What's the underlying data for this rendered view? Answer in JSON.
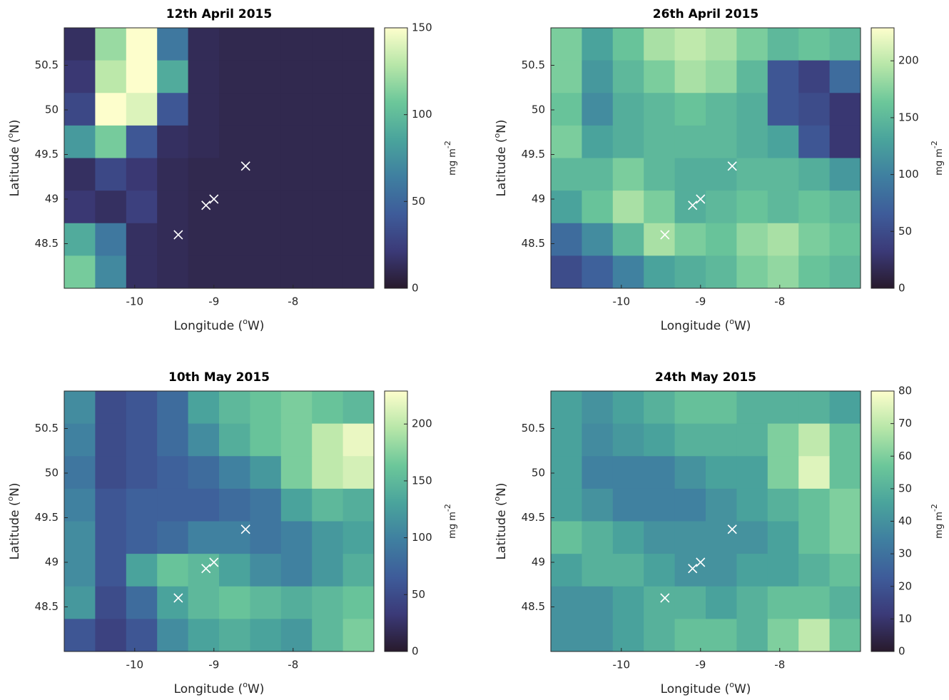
{
  "chart_data": [
    {
      "type": "heatmap",
      "title": "12th April 2015",
      "xlabel": [
        "Longitude (",
        "o",
        "W)"
      ],
      "ylabel": [
        "Latitude (",
        "o",
        "N)"
      ],
      "xlim": [
        -10.89,
        -6.98
      ],
      "ylim": [
        48.0,
        50.92
      ],
      "xticks": [
        -10,
        -9,
        -8
      ],
      "yticks": [
        48.5,
        49,
        49.5,
        50,
        50.5
      ],
      "z": [
        [
          15,
          120,
          150,
          60,
          12,
          10,
          10,
          10,
          10,
          10
        ],
        [
          20,
          130,
          150,
          90,
          12,
          10,
          10,
          10,
          10,
          10
        ],
        [
          30,
          150,
          140,
          40,
          12,
          10,
          10,
          10,
          10,
          10
        ],
        [
          80,
          110,
          40,
          15,
          12,
          10,
          10,
          10,
          10,
          10
        ],
        [
          15,
          30,
          20,
          12,
          10,
          10,
          10,
          10,
          10,
          10
        ],
        [
          20,
          15,
          25,
          12,
          10,
          10,
          10,
          10,
          10,
          10
        ],
        [
          90,
          60,
          15,
          12,
          10,
          10,
          10,
          10,
          10,
          10
        ],
        [
          110,
          70,
          15,
          12,
          10,
          10,
          10,
          10,
          10,
          10
        ]
      ],
      "zlim": [
        0,
        150
      ],
      "zticks": [
        0,
        50,
        100,
        150
      ],
      "colorbar_label": [
        "mg m",
        "-2"
      ],
      "colormap": [
        "#281a2c",
        "#3b3a78",
        "#3e5c9a",
        "#3f7fa0",
        "#4aa49c",
        "#6cc79a",
        "#b7e6a8",
        "#fdfecc"
      ],
      "points": {
        "x": [
          -9.45,
          -9.1,
          -9.0,
          -8.6
        ],
        "y": [
          48.6,
          48.93,
          49.0,
          49.37
        ],
        "color": "#ffffff"
      }
    },
    {
      "type": "heatmap",
      "title": "26th April 2015",
      "xlabel": [
        "Longitude (",
        "o",
        "W)"
      ],
      "ylabel": [
        "Latitude (",
        "o",
        "N)"
      ],
      "xlim": [
        -10.89,
        -6.98
      ],
      "ylim": [
        48.0,
        50.92
      ],
      "xticks": [
        -10,
        -9,
        -8
      ],
      "yticks": [
        48.5,
        49,
        49.5,
        50,
        50.5
      ],
      "z": [
        [
          170,
          130,
          160,
          190,
          200,
          190,
          170,
          150,
          160,
          150
        ],
        [
          170,
          120,
          150,
          170,
          190,
          180,
          150,
          60,
          40,
          80
        ],
        [
          160,
          110,
          140,
          150,
          160,
          150,
          140,
          60,
          50,
          30
        ],
        [
          170,
          130,
          140,
          150,
          150,
          150,
          140,
          130,
          60,
          30
        ],
        [
          150,
          150,
          170,
          150,
          140,
          140,
          150,
          150,
          140,
          120
        ],
        [
          130,
          160,
          190,
          170,
          140,
          150,
          160,
          150,
          160,
          150
        ],
        [
          80,
          110,
          150,
          190,
          170,
          160,
          180,
          190,
          170,
          160
        ],
        [
          50,
          70,
          100,
          130,
          140,
          150,
          170,
          180,
          160,
          150
        ]
      ],
      "zlim": [
        0,
        229
      ],
      "zticks": [
        0,
        50,
        100,
        150,
        200
      ],
      "colorbar_label": [
        "mg m",
        "-2"
      ],
      "colormap": [
        "#281a2c",
        "#3b3a78",
        "#3e5c9a",
        "#3f7fa0",
        "#4aa49c",
        "#6cc79a",
        "#b7e6a8",
        "#fdfecc"
      ],
      "points": {
        "x": [
          -9.45,
          -9.1,
          -9.0,
          -8.6
        ],
        "y": [
          48.6,
          48.93,
          49.0,
          49.37
        ],
        "color": "#ffffff"
      }
    },
    {
      "type": "heatmap",
      "title": "10th May 2015",
      "xlabel": [
        "Longitude (",
        "o",
        "W)"
      ],
      "ylabel": [
        "Latitude (",
        "o",
        "N)"
      ],
      "xlim": [
        -10.89,
        -6.98
      ],
      "ylim": [
        48.0,
        50.92
      ],
      "xticks": [
        -10,
        -9,
        -8
      ],
      "yticks": [
        48.5,
        49,
        49.5,
        50,
        50.5
      ],
      "z": [
        [
          110,
          50,
          60,
          80,
          130,
          150,
          160,
          170,
          160,
          150
        ],
        [
          100,
          50,
          60,
          80,
          110,
          140,
          160,
          170,
          200,
          220
        ],
        [
          90,
          50,
          60,
          70,
          80,
          100,
          120,
          170,
          200,
          210
        ],
        [
          100,
          60,
          70,
          70,
          70,
          80,
          90,
          130,
          150,
          140
        ],
        [
          110,
          60,
          70,
          80,
          100,
          100,
          90,
          100,
          120,
          130
        ],
        [
          110,
          60,
          130,
          160,
          150,
          130,
          110,
          100,
          120,
          140
        ],
        [
          120,
          50,
          80,
          130,
          150,
          160,
          150,
          140,
          150,
          160
        ],
        [
          60,
          40,
          60,
          110,
          130,
          140,
          130,
          120,
          150,
          170
        ]
      ],
      "zlim": [
        0,
        229
      ],
      "zticks": [
        0,
        50,
        100,
        150,
        200
      ],
      "colorbar_label": [
        "mg m",
        "-2"
      ],
      "colormap": [
        "#281a2c",
        "#3b3a78",
        "#3e5c9a",
        "#3f7fa0",
        "#4aa49c",
        "#6cc79a",
        "#b7e6a8",
        "#fdfecc"
      ],
      "points": {
        "x": [
          -9.45,
          -9.1,
          -9.0,
          -8.6
        ],
        "y": [
          48.6,
          48.93,
          49.0,
          49.37
        ],
        "color": "#ffffff"
      }
    },
    {
      "type": "heatmap",
      "title": "24th May 2015",
      "xlabel": [
        "Longitude (",
        "o",
        "W)"
      ],
      "ylabel": [
        "Latitude (",
        "o",
        "N)"
      ],
      "xlim": [
        -10.89,
        -6.98
      ],
      "ylim": [
        48.0,
        50.92
      ],
      "xticks": [
        -10,
        -9,
        -8
      ],
      "yticks": [
        48.5,
        49,
        49.5,
        50,
        50.5
      ],
      "z": [
        [
          45,
          40,
          45,
          50,
          55,
          55,
          50,
          50,
          50,
          45
        ],
        [
          45,
          38,
          42,
          45,
          50,
          50,
          50,
          60,
          70,
          55
        ],
        [
          45,
          35,
          35,
          35,
          40,
          45,
          45,
          60,
          75,
          55
        ],
        [
          45,
          40,
          35,
          35,
          35,
          40,
          45,
          50,
          55,
          60
        ],
        [
          55,
          50,
          45,
          40,
          40,
          40,
          40,
          45,
          55,
          60
        ],
        [
          45,
          50,
          50,
          45,
          40,
          40,
          45,
          45,
          50,
          55
        ],
        [
          40,
          40,
          45,
          50,
          50,
          45,
          50,
          55,
          55,
          50
        ],
        [
          40,
          40,
          45,
          50,
          55,
          55,
          50,
          60,
          70,
          55
        ]
      ],
      "zlim": [
        0,
        80
      ],
      "zticks": [
        0,
        10,
        20,
        30,
        40,
        50,
        60,
        70,
        80
      ],
      "colorbar_label": [
        "mg m",
        "-2"
      ],
      "colormap": [
        "#281a2c",
        "#3b3a78",
        "#3e5c9a",
        "#3f7fa0",
        "#4aa49c",
        "#6cc79a",
        "#b7e6a8",
        "#fdfecc"
      ],
      "points": {
        "x": [
          -9.45,
          -9.1,
          -9.0,
          -8.6
        ],
        "y": [
          48.6,
          48.93,
          49.0,
          49.37
        ],
        "color": "#ffffff"
      }
    }
  ]
}
